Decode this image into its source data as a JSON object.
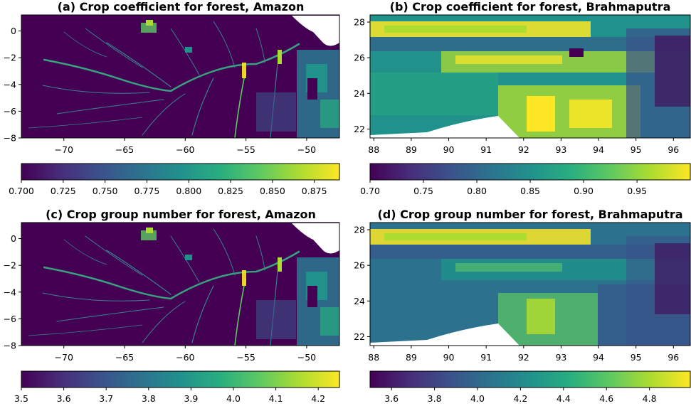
{
  "chart_data": [
    {
      "type": "heatmap",
      "title": "(a) Crop coefficient for forest, Amazon",
      "x_ticks": [
        -70,
        -65,
        -60,
        -55,
        -50
      ],
      "y_ticks": [
        0,
        -2,
        -4,
        -6,
        -8
      ],
      "xlim": [
        -73.5,
        -47.3
      ],
      "ylim": [
        -8,
        1.2
      ],
      "colorbar": {
        "ticks": [
          "0.700",
          "0.725",
          "0.750",
          "0.775",
          "0.800",
          "0.825",
          "0.850",
          "0.875"
        ],
        "range": [
          0.7,
          0.89
        ]
      },
      "colormap": "viridis"
    },
    {
      "type": "heatmap",
      "title": "(b) Crop coefficient for forest, Brahmaputra",
      "x_ticks": [
        88,
        89,
        90,
        91,
        92,
        93,
        94,
        95,
        96
      ],
      "y_ticks": [
        28,
        26,
        24,
        22
      ],
      "xlim": [
        87.9,
        96.45
      ],
      "ylim": [
        21.5,
        28.4
      ],
      "colorbar": {
        "ticks": [
          "0.70",
          "0.75",
          "0.80",
          "0.85",
          "0.90",
          "0.95"
        ],
        "range": [
          0.7,
          0.9999
        ]
      },
      "colormap": "viridis"
    },
    {
      "type": "heatmap",
      "title": "(c) Crop group number for forest, Amazon",
      "x_ticks": [
        -70,
        -65,
        -60,
        -55,
        -50
      ],
      "y_ticks": [
        0,
        -2,
        -4,
        -6,
        -8
      ],
      "xlim": [
        -73.5,
        -47.3
      ],
      "ylim": [
        -8,
        1.2
      ],
      "colorbar": {
        "ticks": [
          "3.5",
          "3.6",
          "3.7",
          "3.8",
          "3.9",
          "4.0",
          "4.1",
          "4.2"
        ],
        "range": [
          3.5,
          4.25
        ]
      },
      "colormap": "viridis"
    },
    {
      "type": "heatmap",
      "title": "(d) Crop group number for forest, Brahmaputra",
      "x_ticks": [
        88,
        89,
        90,
        91,
        92,
        93,
        94,
        95,
        96
      ],
      "y_ticks": [
        28,
        26,
        24,
        22
      ],
      "xlim": [
        87.9,
        96.45
      ],
      "ylim": [
        21.5,
        28.4
      ],
      "colorbar": {
        "ticks": [
          "3.6",
          "3.8",
          "4.0",
          "4.2",
          "4.4",
          "4.6",
          "4.8"
        ],
        "range": [
          3.5,
          4.99
        ]
      },
      "colormap": "viridis"
    }
  ]
}
